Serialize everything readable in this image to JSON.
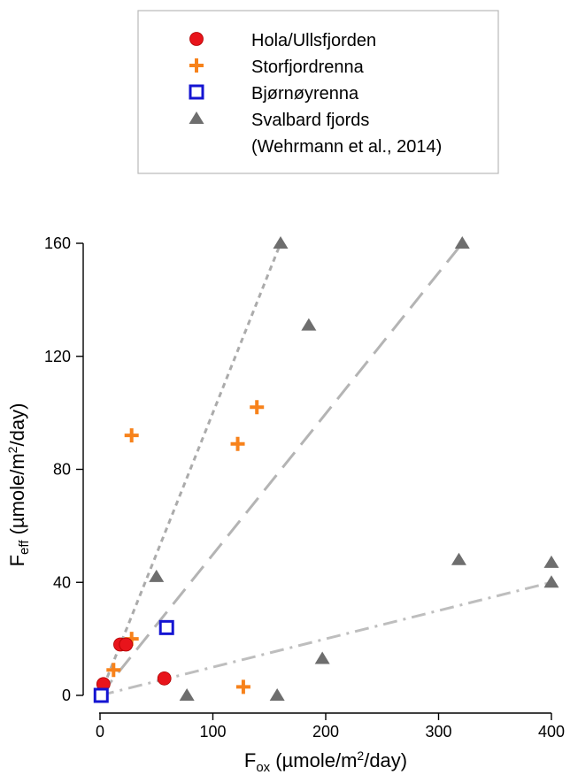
{
  "chart_data": {
    "type": "scatter",
    "title": "",
    "xlabel": {
      "main": "F",
      "sub": "ox",
      "rest": " (µmole/m",
      "sup": "2",
      "tail": "/day)"
    },
    "ylabel": {
      "main": "F",
      "sub": "eff",
      "rest": " (µmole/m",
      "sup": "2",
      "tail": "/day)"
    },
    "xlim": [
      0,
      400
    ],
    "ylim": [
      0,
      160
    ],
    "xticks": [
      0,
      100,
      200,
      300,
      400
    ],
    "yticks": [
      0,
      40,
      80,
      120,
      160
    ],
    "grid": false,
    "legend_position": "top",
    "series": [
      {
        "name": "Hola/Ullsfjorden",
        "marker": "circle",
        "color": "#e8141b",
        "points": [
          [
            3,
            4
          ],
          [
            18,
            18
          ],
          [
            23,
            18
          ],
          [
            57,
            6
          ]
        ]
      },
      {
        "name": "Storfjordrenna",
        "marker": "plus",
        "color": "#f7821b",
        "points": [
          [
            28,
            92
          ],
          [
            122,
            89
          ],
          [
            139,
            102
          ],
          [
            28,
            20
          ],
          [
            12,
            9
          ],
          [
            127,
            3
          ]
        ]
      },
      {
        "name": "Bjørnøyrenna",
        "marker": "square",
        "color": "#1414d2",
        "points": [
          [
            1,
            0
          ],
          [
            59,
            24
          ]
        ]
      },
      {
        "name": "Svalbard fjords",
        "name_line2": "(Wehrmann et al., 2014)",
        "marker": "triangle",
        "color": "#6e6e6e",
        "points": [
          [
            160,
            160
          ],
          [
            321,
            160
          ],
          [
            185,
            131
          ],
          [
            50,
            42
          ],
          [
            318,
            48
          ],
          [
            400,
            47
          ],
          [
            400,
            40
          ],
          [
            197,
            13
          ],
          [
            77,
            0
          ],
          [
            157,
            0
          ],
          [
            1,
            0
          ]
        ]
      }
    ],
    "trend_lines": [
      {
        "style": "short-dash",
        "color": "#ababab",
        "from": [
          0,
          0
        ],
        "to": [
          160,
          160
        ]
      },
      {
        "style": "long-dash",
        "color": "#b4b4b4",
        "from": [
          0,
          0
        ],
        "to": [
          321,
          160
        ]
      },
      {
        "style": "dash-dot",
        "color": "#bebebe",
        "from": [
          0,
          0
        ],
        "to": [
          400,
          40
        ]
      }
    ]
  }
}
